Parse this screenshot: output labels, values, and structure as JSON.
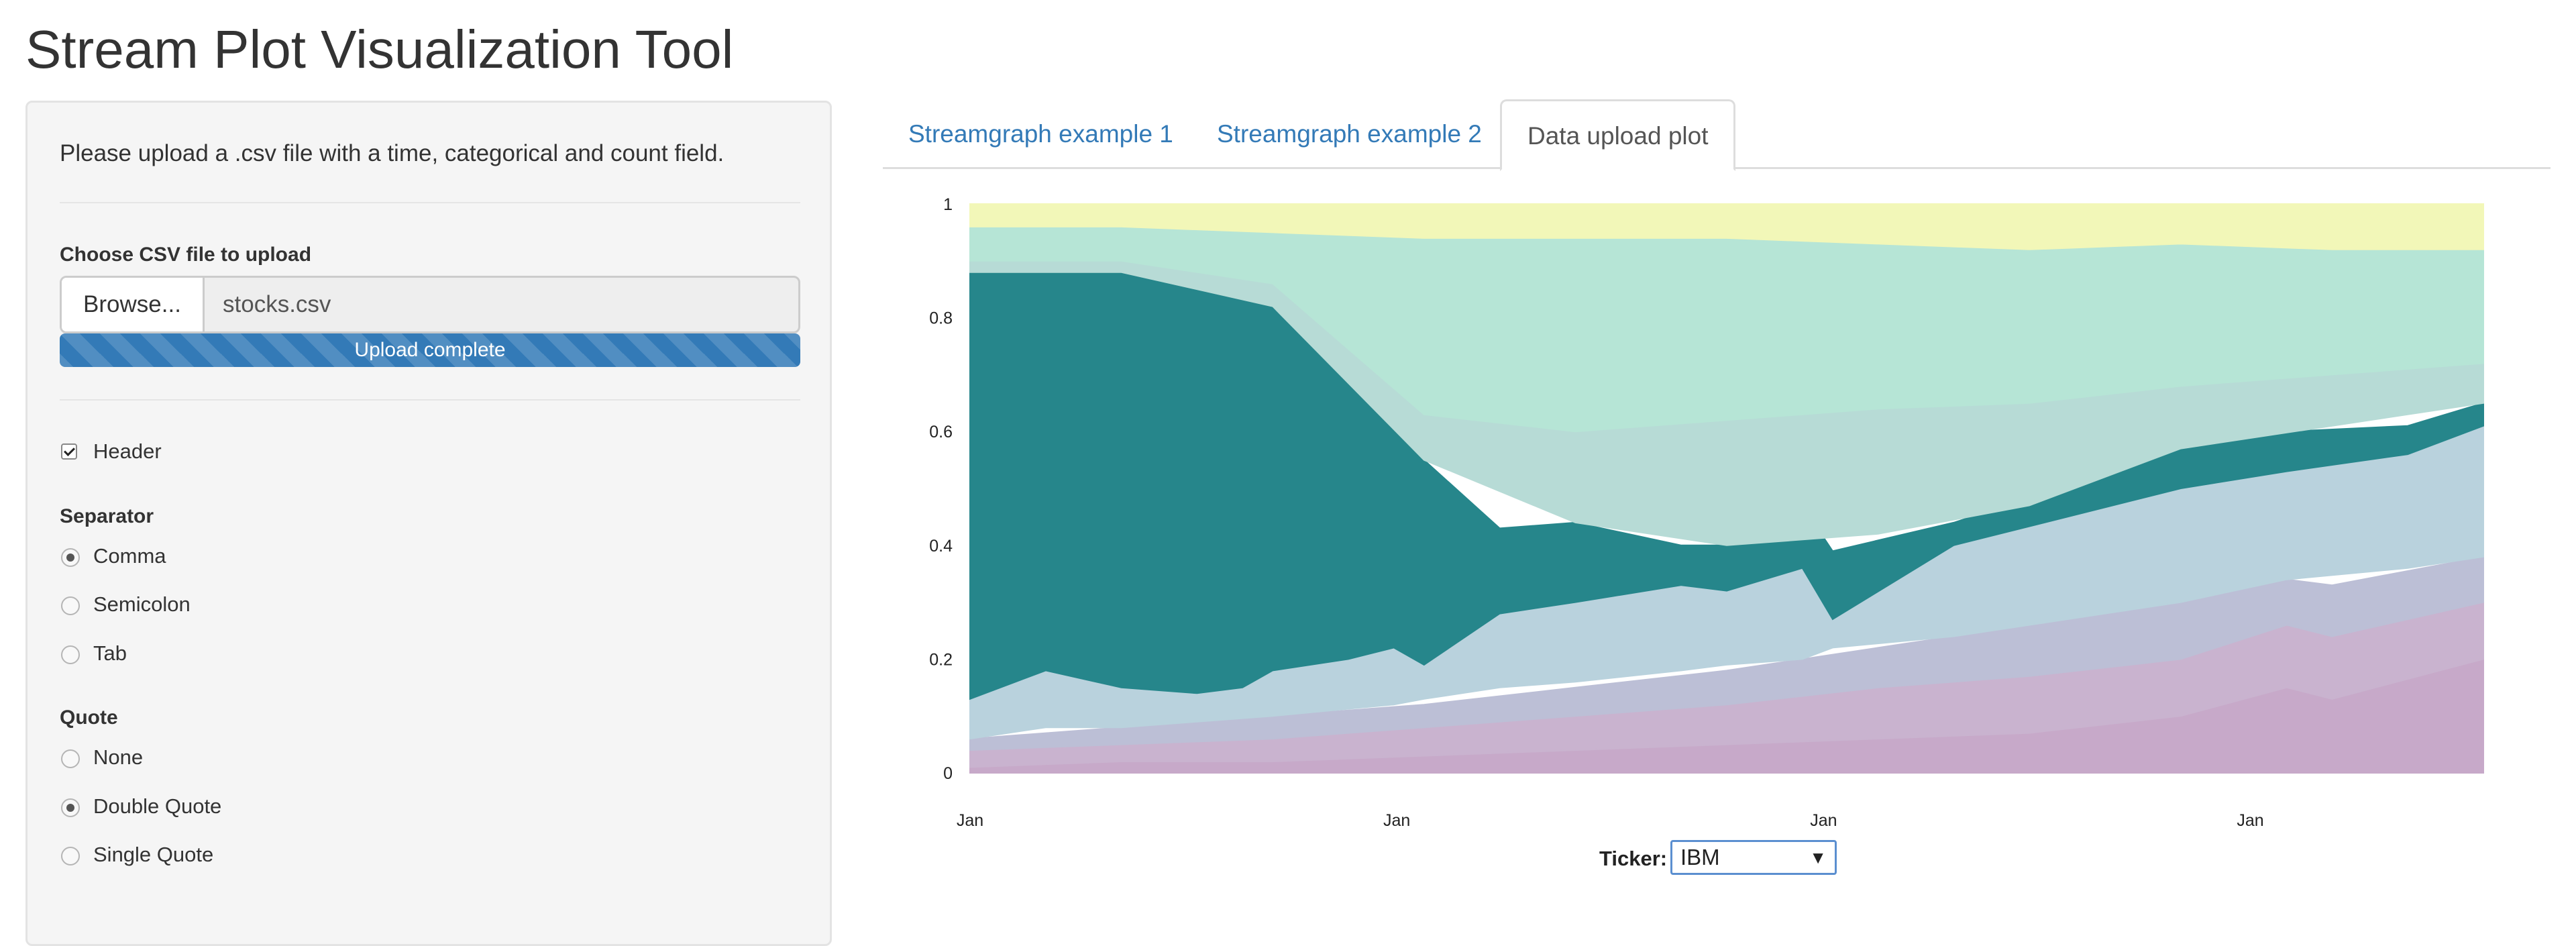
{
  "app": {
    "title": "Stream Plot Visualization Tool"
  },
  "sidebar": {
    "help_text": "Please upload a .csv file with a time, categorical and count field.",
    "file_label": "Choose CSV file to upload",
    "browse_label": "Browse...",
    "file_name": "stocks.csv",
    "progress_text": "Upload complete",
    "progress_fraction": 1.0,
    "header": {
      "label": "Header",
      "checked": true
    },
    "separator": {
      "label": "Separator",
      "options": [
        {
          "label": "Comma",
          "selected": true
        },
        {
          "label": "Semicolon",
          "selected": false
        },
        {
          "label": "Tab",
          "selected": false
        }
      ]
    },
    "quote": {
      "label": "Quote",
      "options": [
        {
          "label": "None",
          "selected": false
        },
        {
          "label": "Double Quote",
          "selected": true
        },
        {
          "label": "Single Quote",
          "selected": false
        }
      ]
    }
  },
  "tabs": [
    {
      "label": "Streamgraph example 1",
      "active": false
    },
    {
      "label": "Streamgraph example 2",
      "active": false
    },
    {
      "label": "Data upload plot",
      "active": true
    }
  ],
  "ticker": {
    "label": "Ticker:",
    "value": "IBM"
  },
  "colors": {
    "accent": "#337ab7",
    "highlight": "#26868b"
  },
  "chart_data": {
    "type": "area",
    "stacked": "expand",
    "x_ticks": [
      "Jan",
      "Jan",
      "Jan",
      "Jan"
    ],
    "y_ticks": [
      "0",
      "0.2",
      "0.4",
      "0.6",
      "0.8",
      "1"
    ],
    "ylim": [
      0,
      1
    ],
    "highlighted_series": "IBM",
    "series": [
      {
        "color": "#c7a9c9",
        "band": [
          [
            0,
            0,
            0.01
          ],
          [
            0.1,
            0,
            0.02
          ],
          [
            0.2,
            0,
            0.02
          ],
          [
            0.3,
            0,
            0.03
          ],
          [
            0.4,
            0,
            0.04
          ],
          [
            0.5,
            0,
            0.05
          ],
          [
            0.6,
            0,
            0.06
          ],
          [
            0.7,
            0,
            0.07
          ],
          [
            0.8,
            0,
            0.1
          ],
          [
            0.87,
            0,
            0.15
          ],
          [
            0.9,
            0,
            0.13
          ],
          [
            1,
            0,
            0.2
          ]
        ]
      },
      {
        "color": "#c9b3cf",
        "band": [
          [
            0,
            0.01,
            0.04
          ],
          [
            0.1,
            0.02,
            0.05
          ],
          [
            0.2,
            0.02,
            0.06
          ],
          [
            0.3,
            0.03,
            0.08
          ],
          [
            0.4,
            0.04,
            0.1
          ],
          [
            0.5,
            0.05,
            0.12
          ],
          [
            0.6,
            0.06,
            0.15
          ],
          [
            0.7,
            0.07,
            0.17
          ],
          [
            0.8,
            0.1,
            0.2
          ],
          [
            0.87,
            0.15,
            0.26
          ],
          [
            0.9,
            0.13,
            0.24
          ],
          [
            1,
            0.2,
            0.3
          ]
        ]
      },
      {
        "color": "#bcbfd6",
        "band": [
          [
            0,
            0.04,
            0.06
          ],
          [
            0.1,
            0.05,
            0.08
          ],
          [
            0.2,
            0.06,
            0.1
          ],
          [
            0.3,
            0.08,
            0.12
          ],
          [
            0.4,
            0.1,
            0.15
          ],
          [
            0.5,
            0.12,
            0.18
          ],
          [
            0.6,
            0.15,
            0.22
          ],
          [
            0.7,
            0.17,
            0.26
          ],
          [
            0.8,
            0.2,
            0.3
          ],
          [
            0.87,
            0.26,
            0.34
          ],
          [
            0.9,
            0.24,
            0.33
          ],
          [
            1,
            0.3,
            0.38
          ]
        ]
      },
      {
        "color": "#b9d2dd",
        "band": [
          [
            0,
            0.06,
            0.13
          ],
          [
            0.05,
            0.08,
            0.18
          ],
          [
            0.1,
            0.08,
            0.15
          ],
          [
            0.15,
            0.09,
            0.14
          ],
          [
            0.2,
            0.1,
            0.18
          ],
          [
            0.28,
            0.12,
            0.22
          ],
          [
            0.3,
            0.13,
            0.19
          ],
          [
            0.35,
            0.15,
            0.28
          ],
          [
            0.4,
            0.16,
            0.3
          ],
          [
            0.47,
            0.18,
            0.33
          ],
          [
            0.5,
            0.19,
            0.32
          ],
          [
            0.55,
            0.2,
            0.36
          ],
          [
            0.57,
            0.22,
            0.27
          ],
          [
            0.65,
            0.24,
            0.4
          ],
          [
            0.8,
            0.3,
            0.5
          ],
          [
            0.87,
            0.34,
            0.53
          ],
          [
            0.95,
            0.36,
            0.56
          ],
          [
            1,
            0.38,
            0.61
          ]
        ]
      },
      {
        "color": "#26868b",
        "band": [
          [
            0,
            0.13,
            0.88
          ],
          [
            0.05,
            0.18,
            0.88
          ],
          [
            0.1,
            0.15,
            0.88
          ],
          [
            0.15,
            0.14,
            0.89
          ],
          [
            0.18,
            0.15,
            0.85
          ],
          [
            0.2,
            0.18,
            0.82
          ],
          [
            0.25,
            0.2,
            0.76
          ],
          [
            0.28,
            0.22,
            0.72
          ],
          [
            0.3,
            0.19,
            0.55
          ],
          [
            0.35,
            0.28,
            0.43
          ],
          [
            0.4,
            0.3,
            0.44
          ],
          [
            0.47,
            0.33,
            0.4
          ],
          [
            0.5,
            0.32,
            0.4
          ],
          [
            0.55,
            0.36,
            0.47
          ],
          [
            0.57,
            0.27,
            0.39
          ],
          [
            0.65,
            0.4,
            0.44
          ],
          [
            0.8,
            0.5,
            0.57
          ],
          [
            0.87,
            0.53,
            0.6
          ],
          [
            0.95,
            0.56,
            0.61
          ],
          [
            1,
            0.61,
            0.65
          ]
        ]
      },
      {
        "color": "#b7dbd6",
        "band": [
          [
            0,
            0.88,
            0.9
          ],
          [
            0.1,
            0.88,
            0.9
          ],
          [
            0.2,
            0.82,
            0.86
          ],
          [
            0.3,
            0.55,
            0.63
          ],
          [
            0.4,
            0.44,
            0.6
          ],
          [
            0.5,
            0.4,
            0.62
          ],
          [
            0.6,
            0.42,
            0.64
          ],
          [
            0.7,
            0.47,
            0.65
          ],
          [
            0.8,
            0.57,
            0.68
          ],
          [
            0.9,
            0.61,
            0.7
          ],
          [
            1,
            0.65,
            0.72
          ]
        ]
      },
      {
        "color": "#b6e5d6",
        "band": [
          [
            0,
            0.9,
            0.96
          ],
          [
            0.1,
            0.9,
            0.96
          ],
          [
            0.2,
            0.86,
            0.95
          ],
          [
            0.3,
            0.63,
            0.94
          ],
          [
            0.4,
            0.6,
            0.94
          ],
          [
            0.5,
            0.62,
            0.94
          ],
          [
            0.6,
            0.64,
            0.93
          ],
          [
            0.7,
            0.65,
            0.92
          ],
          [
            0.8,
            0.68,
            0.93
          ],
          [
            0.9,
            0.7,
            0.92
          ],
          [
            1,
            0.72,
            0.92
          ]
        ]
      },
      {
        "color": "#f2f7b8",
        "band": [
          [
            0,
            0.96,
            1
          ],
          [
            0.1,
            0.96,
            1
          ],
          [
            0.2,
            0.95,
            1
          ],
          [
            0.3,
            0.94,
            1
          ],
          [
            0.4,
            0.94,
            1
          ],
          [
            0.5,
            0.94,
            1
          ],
          [
            0.6,
            0.93,
            1
          ],
          [
            0.7,
            0.92,
            1
          ],
          [
            0.8,
            0.93,
            1
          ],
          [
            0.9,
            0.92,
            1
          ],
          [
            1,
            0.92,
            1
          ]
        ]
      }
    ]
  }
}
